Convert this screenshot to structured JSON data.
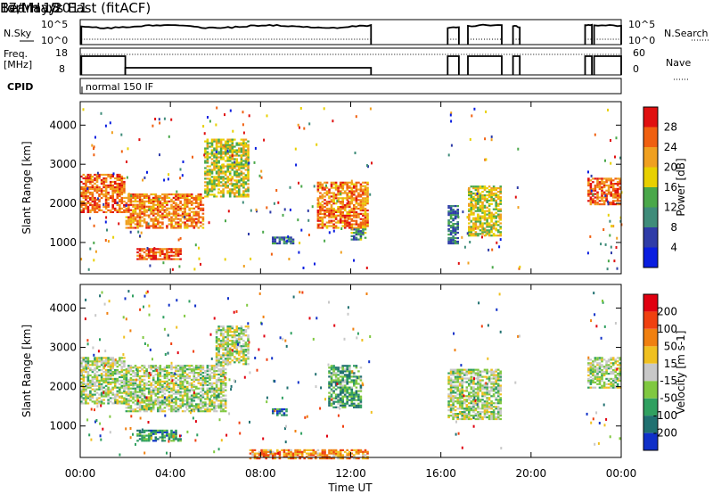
{
  "header": {
    "station": "Fort Hays East (fitACF)",
    "beam": "Beam 18",
    "date": "17/May/2011"
  },
  "panels": {
    "nsky": {
      "left_label": "N.Sky",
      "right_label": "N.Search",
      "tick_hi": "10^5",
      "tick_lo": "10^0"
    },
    "freq": {
      "left_label_1": "Freq.",
      "left_label_2": "[MHz]",
      "right_label": "Nave",
      "left_ticks": [
        "18",
        "8"
      ],
      "right_ticks": [
        "60",
        "0"
      ]
    },
    "cpid": {
      "label": "CPID",
      "mode": "normal 150 IF"
    }
  },
  "chart_data": [
    {
      "type": "heatmap",
      "title": "",
      "xlabel": "Time UT",
      "ylabel": "Slant Range [km]",
      "xlim": [
        "00:00",
        "24:00"
      ],
      "ylim": [
        200,
        4600
      ],
      "x_ticks": [
        "00:00",
        "04:00",
        "08:00",
        "12:00",
        "16:00",
        "20:00",
        "00:00"
      ],
      "y_ticks": [
        1000,
        2000,
        3000,
        4000
      ],
      "colorbar": {
        "label": "Power [dB]",
        "ticks": [
          "4",
          "8",
          "12",
          "16",
          "20",
          "24",
          "28"
        ],
        "colors": [
          "#0a1ee0",
          "#2f3ca8",
          "#3f8c7a",
          "#4aa84a",
          "#e8d000",
          "#f0a020",
          "#f06010",
          "#e01010"
        ]
      },
      "regions": [
        {
          "t": [
            0.0,
            2.0
          ],
          "r": [
            1800,
            2800
          ],
          "level": 0.8
        },
        {
          "t": [
            2.0,
            5.5
          ],
          "r": [
            1400,
            2300
          ],
          "level": 0.75
        },
        {
          "t": [
            2.5,
            4.5
          ],
          "r": [
            600,
            900
          ],
          "level": 0.8
        },
        {
          "t": [
            5.5,
            7.5
          ],
          "r": [
            2200,
            3700
          ],
          "level": 0.55
        },
        {
          "t": [
            8.5,
            9.5
          ],
          "r": [
            1000,
            1200
          ],
          "level": 0.3
        },
        {
          "t": [
            10.5,
            12.8
          ],
          "r": [
            1400,
            2600
          ],
          "level": 0.75
        },
        {
          "t": [
            12.0,
            12.7
          ],
          "r": [
            1100,
            1400
          ],
          "level": 0.35
        },
        {
          "t": [
            16.3,
            16.8
          ],
          "r": [
            1000,
            2000
          ],
          "level": 0.3
        },
        {
          "t": [
            17.2,
            18.7
          ],
          "r": [
            1200,
            2500
          ],
          "level": 0.55
        },
        {
          "t": [
            22.5,
            24.0
          ],
          "r": [
            2000,
            2700
          ],
          "level": 0.8
        }
      ]
    },
    {
      "type": "heatmap",
      "title": "",
      "xlabel": "Time UT",
      "ylabel": "Slant Range [km]",
      "xlim": [
        "00:00",
        "24:00"
      ],
      "ylim": [
        200,
        4600
      ],
      "x_ticks": [
        "00:00",
        "04:00",
        "08:00",
        "12:00",
        "16:00",
        "20:00",
        "00:00"
      ],
      "y_ticks": [
        1000,
        2000,
        3000,
        4000
      ],
      "colorbar": {
        "label": "Velocity [m s-1]",
        "ticks": [
          "200",
          "100",
          "50",
          "15",
          "-15",
          "-50",
          "-100",
          "-200"
        ],
        "colors": [
          "#1030c8",
          "#207070",
          "#30a060",
          "#80c840",
          "#c8c8c8",
          "#f0c020",
          "#f08010",
          "#f04010",
          "#e00010"
        ]
      },
      "regions": [
        {
          "t": [
            0.0,
            2.0
          ],
          "r": [
            1600,
            2800
          ],
          "level": 0.45
        },
        {
          "t": [
            2.0,
            6.5
          ],
          "r": [
            1400,
            2600
          ],
          "level": 0.45
        },
        {
          "t": [
            2.5,
            4.5
          ],
          "r": [
            650,
            950
          ],
          "level": 0.25
        },
        {
          "t": [
            6.0,
            7.5
          ],
          "r": [
            2600,
            3600
          ],
          "level": 0.45
        },
        {
          "t": [
            8.5,
            9.2
          ],
          "r": [
            1300,
            1500
          ],
          "level": 0.2
        },
        {
          "t": [
            7.5,
            12.8
          ],
          "r": [
            200,
            450
          ],
          "level": 0.7
        },
        {
          "t": [
            11.0,
            12.5
          ],
          "r": [
            1500,
            2600
          ],
          "level": 0.3
        },
        {
          "t": [
            16.3,
            18.7
          ],
          "r": [
            1200,
            2500
          ],
          "level": 0.45
        },
        {
          "t": [
            22.5,
            24.0
          ],
          "r": [
            2000,
            2800
          ],
          "level": 0.45
        }
      ]
    }
  ]
}
